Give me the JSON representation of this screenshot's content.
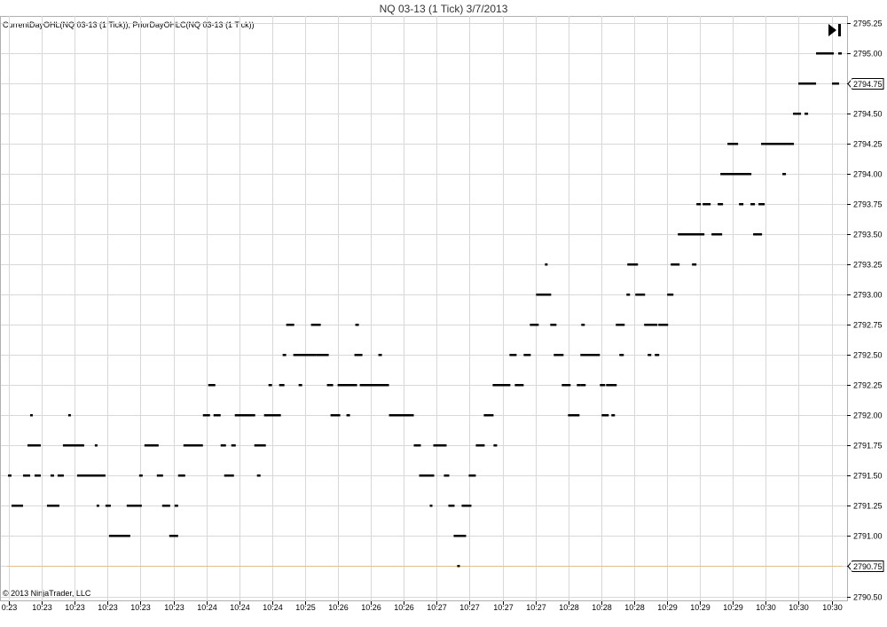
{
  "title": "NQ 03-13 (1 Tick)  3/7/2013",
  "indicator_label": "CurrentDayOHL(NQ 03-13 (1 Tick)), PriorDayOHLC(NQ 03-13 (1 Tick))",
  "copyright": "© 2013 NinjaTrader, LLC",
  "colors": {
    "price": "#000000",
    "grid": "#d8d8d8",
    "prior_close_line": "#e0c088",
    "background": "#ffffff"
  },
  "chart_data": {
    "type": "line",
    "ylim": [
      2790.5,
      2795.25
    ],
    "y_ticks": [
      2795.25,
      2795.0,
      2794.75,
      2794.5,
      2794.25,
      2794.0,
      2793.75,
      2793.5,
      2793.25,
      2793.0,
      2792.75,
      2792.5,
      2792.25,
      2792.0,
      2791.75,
      2791.5,
      2791.25,
      2791.0,
      2790.75,
      2790.5
    ],
    "y_tick_labels": [
      "2795.25",
      "2795.00",
      "2794.75",
      "2794.50",
      "2794.25",
      "2794.00",
      "2793.75",
      "2793.50",
      "2793.25",
      "2793.00",
      "2792.75",
      "2792.50",
      "2792.25",
      "2792.00",
      "2791.75",
      "2791.50",
      "2791.25",
      "2791.00",
      "2790.75",
      "2790.50"
    ],
    "x_tick_labels": [
      "0:23",
      "10:23",
      "10:23",
      "10:23",
      "10:23",
      "10:23",
      "10:24",
      "10:24",
      "10:24",
      "10:25",
      "10:26",
      "10:26",
      "10:26",
      "10:27",
      "10:27",
      "10:27",
      "10:27",
      "10:28",
      "10:28",
      "10:28",
      "10:29",
      "10:29",
      "10:29",
      "10:30",
      "10:30",
      "10:30"
    ],
    "last_price": 2794.75,
    "last_price_label": "2794.75",
    "prior_day_close": 2790.75,
    "prior_day_close_label": "2790.75",
    "grid": true,
    "x_index_max": 955,
    "segments": [
      [
        8,
        12,
        2791.5
      ],
      [
        12,
        25,
        2791.25
      ],
      [
        25,
        33,
        2791.5
      ],
      [
        33,
        36,
        2792.0
      ],
      [
        30,
        45,
        2791.75
      ],
      [
        38,
        45,
        2791.5
      ],
      [
        52,
        66,
        2791.25
      ],
      [
        56,
        60,
        2791.5
      ],
      [
        64,
        71,
        2791.5
      ],
      [
        70,
        94,
        2791.75
      ],
      [
        76,
        79,
        2792.0
      ],
      [
        86,
        118,
        2791.5
      ],
      [
        106,
        109,
        2791.75
      ],
      [
        108,
        111,
        2791.25
      ],
      [
        118,
        124,
        2791.25
      ],
      [
        122,
        146,
        2791.0
      ],
      [
        142,
        159,
        2791.25
      ],
      [
        156,
        160,
        2791.5
      ],
      [
        162,
        178,
        2791.75
      ],
      [
        176,
        183,
        2791.5
      ],
      [
        182,
        191,
        2791.25
      ],
      [
        190,
        200,
        2791.0
      ],
      [
        196,
        200,
        2791.25
      ],
      [
        200,
        208,
        2791.5
      ],
      [
        206,
        228,
        2791.75
      ],
      [
        228,
        236,
        2792.0
      ],
      [
        234,
        242,
        2792.25
      ],
      [
        240,
        248,
        2792.0
      ],
      [
        248,
        254,
        2791.75
      ],
      [
        252,
        263,
        2791.5
      ],
      [
        260,
        265,
        2791.75
      ],
      [
        264,
        287,
        2792.0
      ],
      [
        286,
        299,
        2791.75
      ],
      [
        289,
        293,
        2791.5
      ],
      [
        297,
        316,
        2792.0
      ],
      [
        302,
        306,
        2792.25
      ],
      [
        314,
        320,
        2792.25
      ],
      [
        318,
        322,
        2792.5
      ],
      [
        322,
        331,
        2792.75
      ],
      [
        330,
        356,
        2792.5
      ],
      [
        336,
        340,
        2792.25
      ],
      [
        350,
        361,
        2792.75
      ],
      [
        356,
        370,
        2792.5
      ],
      [
        368,
        375,
        2792.25
      ],
      [
        372,
        383,
        2792.0
      ],
      [
        380,
        402,
        2792.25
      ],
      [
        390,
        394,
        2792.0
      ],
      [
        400,
        404,
        2792.75
      ],
      [
        399,
        408,
        2792.5
      ],
      [
        405,
        438,
        2792.25
      ],
      [
        426,
        430,
        2792.5
      ],
      [
        438,
        466,
        2792.0
      ],
      [
        466,
        474,
        2791.75
      ],
      [
        472,
        489,
        2791.5
      ],
      [
        484,
        487,
        2791.25
      ],
      [
        488,
        503,
        2791.75
      ],
      [
        500,
        506,
        2791.5
      ],
      [
        505,
        512,
        2791.25
      ],
      [
        511,
        525,
        2791.0
      ],
      [
        515,
        518,
        2790.75
      ],
      [
        520,
        531,
        2791.25
      ],
      [
        528,
        536,
        2791.5
      ],
      [
        536,
        546,
        2791.75
      ],
      [
        545,
        556,
        2792.0
      ],
      [
        556,
        560,
        2791.75
      ],
      [
        555,
        575,
        2792.25
      ],
      [
        574,
        582,
        2792.5
      ],
      [
        580,
        590,
        2792.25
      ],
      [
        590,
        598,
        2792.5
      ],
      [
        597,
        607,
        2792.75
      ],
      [
        604,
        621,
        2793.0
      ],
      [
        614,
        617,
        2793.25
      ],
      [
        620,
        627,
        2792.75
      ],
      [
        624,
        635,
        2792.5
      ],
      [
        633,
        643,
        2792.25
      ],
      [
        640,
        653,
        2792.0
      ],
      [
        650,
        654,
        2792.25
      ],
      [
        655,
        659,
        2792.75
      ],
      [
        654,
        660,
        2792.25
      ],
      [
        654,
        676,
        2792.5
      ],
      [
        676,
        682,
        2792.25
      ],
      [
        678,
        686,
        2792.0
      ],
      [
        683,
        695,
        2792.25
      ],
      [
        689,
        693,
        2792.0
      ],
      [
        694,
        704,
        2792.75
      ],
      [
        698,
        703,
        2792.5
      ],
      [
        706,
        710,
        2793.0
      ],
      [
        707,
        719,
        2793.25
      ],
      [
        716,
        727,
        2793.0
      ],
      [
        726,
        741,
        2792.75
      ],
      [
        730,
        734,
        2792.5
      ],
      [
        738,
        743,
        2792.5
      ],
      [
        742,
        753,
        2792.75
      ],
      [
        752,
        759,
        2793.0
      ],
      [
        756,
        766,
        2793.25
      ],
      [
        764,
        794,
        2793.5
      ],
      [
        780,
        785,
        2793.25
      ],
      [
        785,
        790,
        2793.75
      ],
      [
        792,
        801,
        2793.75
      ],
      [
        802,
        814,
        2793.5
      ],
      [
        809,
        815,
        2793.75
      ],
      [
        812,
        847,
        2794.0
      ],
      [
        820,
        832,
        2794.25
      ],
      [
        833,
        838,
        2793.75
      ],
      [
        846,
        851,
        2793.75
      ],
      [
        849,
        859,
        2793.5
      ],
      [
        855,
        862,
        2793.75
      ],
      [
        858,
        862,
        2794.25
      ],
      [
        862,
        895,
        2794.25
      ],
      [
        882,
        886,
        2794.0
      ],
      [
        894,
        903,
        2794.5
      ],
      [
        900,
        920,
        2794.75
      ],
      [
        907,
        911,
        2794.5
      ],
      [
        920,
        940,
        2795.0
      ],
      [
        938,
        946,
        2794.75
      ],
      [
        945,
        949,
        2795.0
      ]
    ]
  }
}
